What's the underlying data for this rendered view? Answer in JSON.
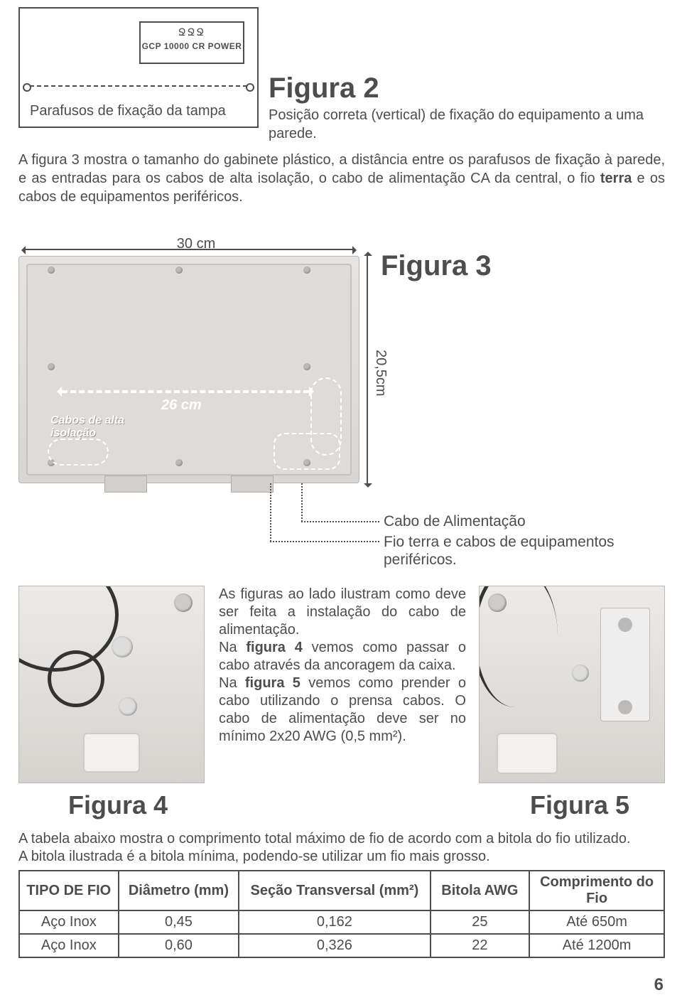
{
  "top_box": {
    "squiggle": "ՋՋՋ",
    "power_label": "GCP 10000 CR POWER",
    "caption": "Parafusos de fixação da tampa"
  },
  "figura2": {
    "title": "Figura 2",
    "caption": "Posição correta (vertical) de fixação do equipamento a uma parede."
  },
  "para1": {
    "before": "A figura 3 mostra o tamanho do gabinete plástico, a distância entre os parafusos de fixação à parede, e as entradas para os cabos de alta isolação, o cabo de alimentação CA da central, o fio ",
    "bold": "terra",
    "after": " e os cabos de equipamentos periféricos."
  },
  "figura3": {
    "title": "Figura 3",
    "dim_top": "30 cm",
    "dim_h_inner": "26 cm",
    "dim_v": "20,5cm",
    "cabos_alta": "Cabos de alta isolação",
    "leader1": "Cabo de Alimentação",
    "leader2": "Fio terra e cabos de equipamentos periféricos."
  },
  "mid_text": {
    "p1": "As figuras ao lado ilustram como deve ser feita a instalação do cabo de alimentação.",
    "p2a": "Na ",
    "p2b": "figura 4",
    "p2c": " vemos como passar o cabo através da ancoragem da caixa.",
    "p3a": "Na ",
    "p3b": "figura 5",
    "p3c": " vemos como prender o cabo utilizando o prensa cabos. O cabo de alimentação deve ser no mínimo 2x20 AWG (0,5 mm²)."
  },
  "figura4_title": "Figura 4",
  "figura5_title": "Figura 5",
  "table_intro": {
    "line1": "A tabela abaixo mostra o comprimento total máximo de fio de acordo com a bitola do fio utilizado.",
    "line2": "A bitola ilustrada é a bitola mínima, podendo-se utilizar um fio mais grosso."
  },
  "table": {
    "headers": [
      "TIPO DE FIO",
      "Diâmetro (mm)",
      "Seção Transversal (mm²)",
      "Bitola AWG",
      "Comprimento do Fio"
    ],
    "rows": [
      [
        "Aço Inox",
        "0,45",
        "0,162",
        "25",
        "Até 650m"
      ],
      [
        "Aço Inox",
        "0,60",
        "0,326",
        "22",
        "Até 1200m"
      ]
    ],
    "col_widths": [
      "140px",
      "170px",
      "270px",
      "140px",
      "190px"
    ]
  },
  "page_number": "6",
  "colors": {
    "text": "#4d4d4d",
    "bg": "#ffffff",
    "photo_bg1": "#e6e4e2",
    "photo_bg2": "#d8d5d2",
    "dash_white": "#ffffff"
  }
}
